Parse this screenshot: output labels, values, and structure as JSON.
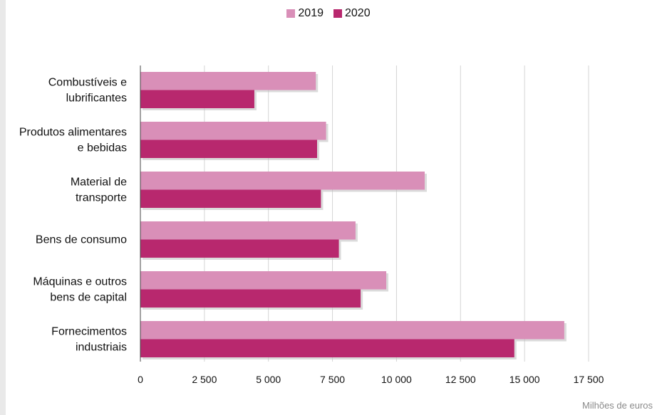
{
  "chart_data": {
    "type": "bar",
    "orientation": "horizontal",
    "categories": [
      [
        "Combustíveis e",
        "lubrificantes"
      ],
      [
        "Produtos alimentares",
        "e bebidas"
      ],
      [
        "Material de",
        "transporte"
      ],
      [
        "Bens de consumo"
      ],
      [
        "Máquinas e outros",
        "bens de capital"
      ],
      [
        "Fornecimentos",
        "industriais"
      ]
    ],
    "series": [
      {
        "name": "2019",
        "color": "#d98fb8",
        "values": [
          6850,
          7250,
          11100,
          8400,
          9600,
          16550
        ]
      },
      {
        "name": "2020",
        "color": "#b8286e",
        "values": [
          4450,
          6900,
          7050,
          7750,
          8600,
          14600
        ]
      }
    ],
    "xlim": [
      0,
      17500
    ],
    "xticks": [
      0,
      2500,
      5000,
      7500,
      10000,
      12500,
      15000,
      17500
    ],
    "xtick_labels": [
      "0",
      "2 500",
      "5 000",
      "7 500",
      "10 000",
      "12 500",
      "15 000",
      "17 500"
    ],
    "grid": true,
    "legend_position": "top-center",
    "unit_label": "Milhões de euros"
  }
}
